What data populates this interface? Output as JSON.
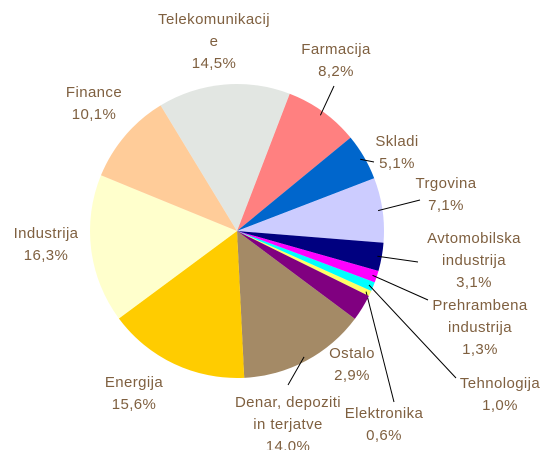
{
  "chart_data": {
    "type": "pie",
    "categories": [
      "Farmacija",
      "Skladi",
      "Trgovina",
      "Avtomobilska\nindustrija",
      "Prehrambena\nindustrija",
      "Tehnologija",
      "Elektronika",
      "Ostalo",
      "Denar, depoziti\nin terjatve",
      "Energija",
      "Industrija",
      "Finance",
      "Telekomunikacij\ne"
    ],
    "values": [
      8.2,
      5.1,
      7.1,
      3.1,
      1.3,
      1.0,
      0.6,
      2.9,
      14.0,
      15.6,
      16.3,
      10.1,
      14.5
    ],
    "value_labels": [
      "8,2%",
      "5,1%",
      "7,1%",
      "3,1%",
      "1,3%",
      "1,0%",
      "0,6%",
      "2,9%",
      "14,0%",
      "15,6%",
      "16,3%",
      "10,1%",
      "14,5%"
    ],
    "colors": [
      "#ff8080",
      "#0066cc",
      "#ccccff",
      "#000080",
      "#ff00ff",
      "#00ffff",
      "#ffff66",
      "#800080",
      "#a48a66",
      "#ffcc00",
      "#ffffcc",
      "#ffcc99",
      "#e2e6e2"
    ]
  }
}
